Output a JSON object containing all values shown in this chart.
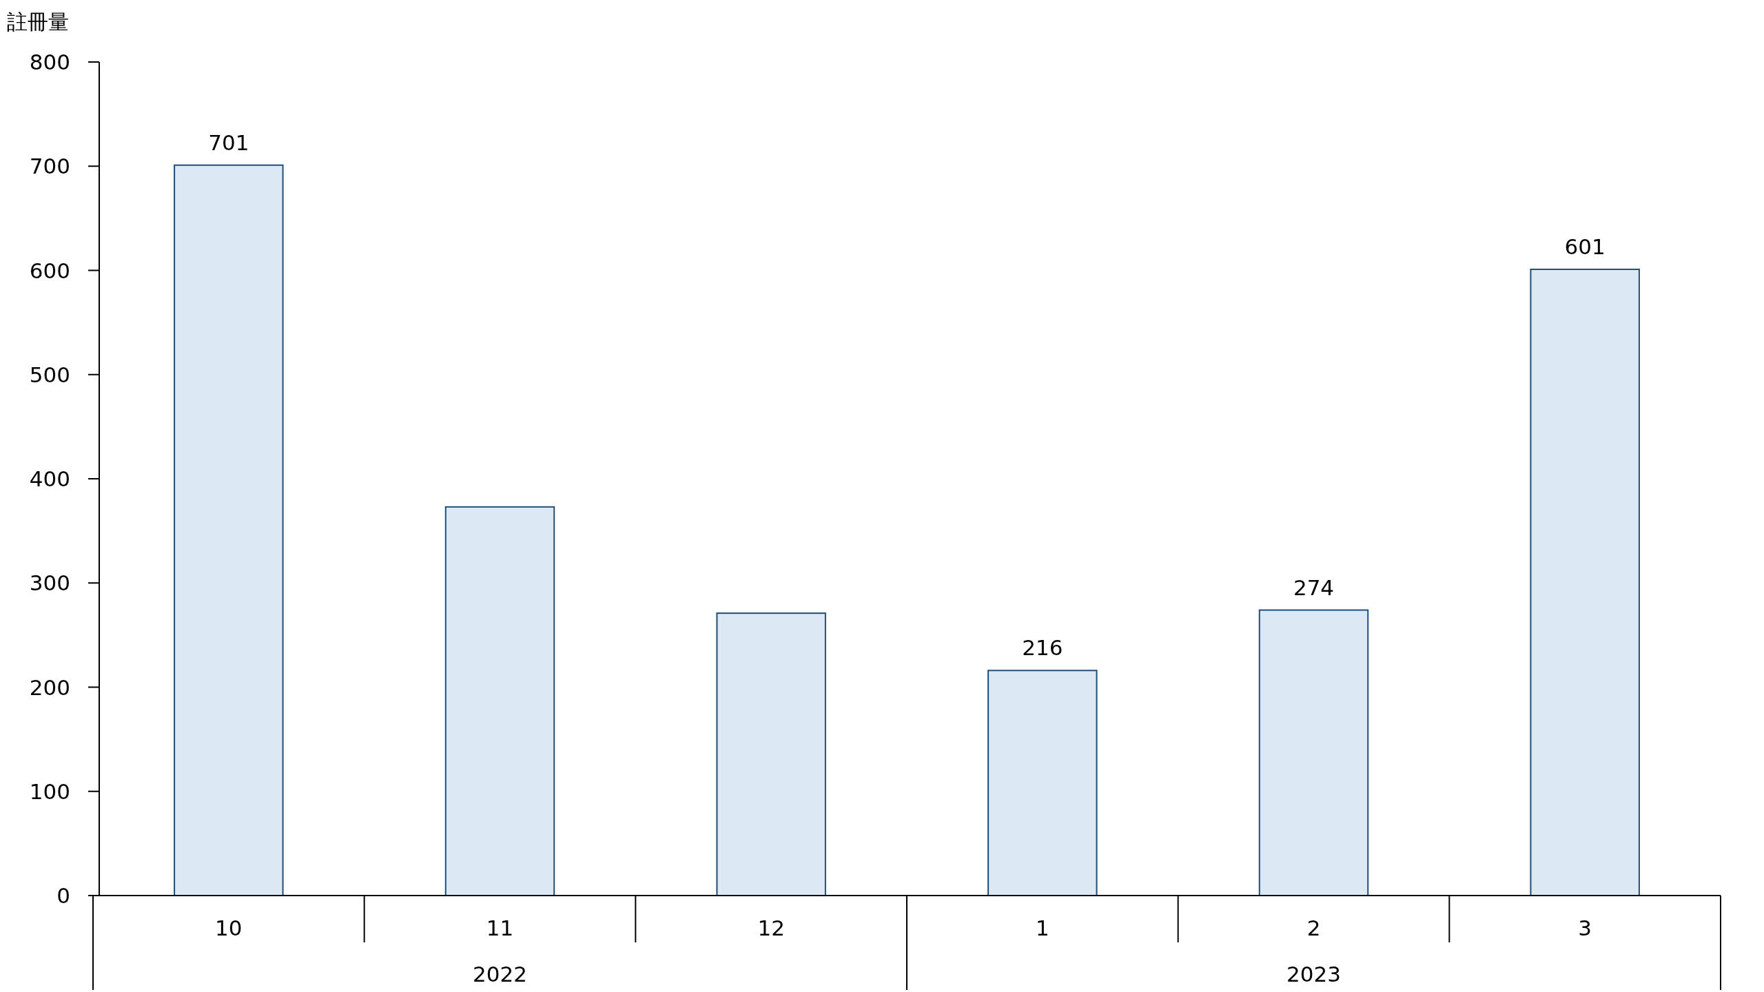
{
  "chart_data": {
    "type": "bar",
    "ylabel": "註冊量",
    "categories": [
      "10",
      "11",
      "12",
      "1",
      "2",
      "3"
    ],
    "series": [
      {
        "color": "#dde8f5",
        "values": [
          701,
          373,
          271,
          216,
          274,
          601
        ],
        "value_labels": [
          "701",
          null,
          null,
          "216",
          "274",
          "601"
        ]
      }
    ],
    "ylim": [
      0,
      800
    ],
    "yticks": [
      0,
      100,
      200,
      300,
      400,
      500,
      600,
      700,
      800
    ],
    "annotations": [
      "2022",
      "2023"
    ],
    "grid": false
  }
}
